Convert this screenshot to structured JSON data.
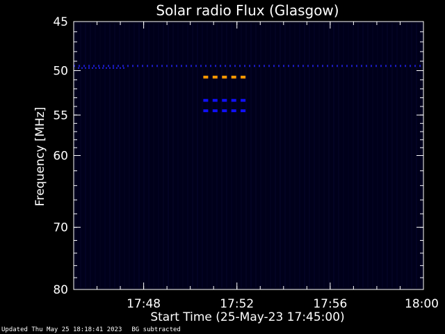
{
  "chart_data": {
    "type": "heatmap",
    "title": "Solar radio Flux (Glasgow)",
    "xlabel": "Start Time (25-May-23 17:45:00)",
    "ylabel": "Frequency [MHz]",
    "x_range_minutes": [
      0,
      15
    ],
    "x_ticks": [
      {
        "minute": 3,
        "label": "17:48"
      },
      {
        "minute": 7,
        "label": "17:52"
      },
      {
        "minute": 11,
        "label": "17:56"
      },
      {
        "minute": 15,
        "label": "18:00"
      }
    ],
    "y_range_mhz": [
      45,
      80
    ],
    "y_scale": "log",
    "y_ticks": [
      45,
      50,
      55,
      60,
      70,
      80
    ],
    "background_color": "#00001a",
    "features": [
      {
        "kind": "continuous-band",
        "frequency_mhz": 49.5,
        "x_minutes": [
          0,
          15
        ],
        "intensity": "blue",
        "color": "#2020e0"
      },
      {
        "kind": "burst",
        "frequency_mhz": 50.7,
        "x_minutes": [
          5.5,
          7.5
        ],
        "intensity": "high",
        "color": "#ff9900"
      },
      {
        "kind": "burst",
        "frequency_mhz": 53.3,
        "x_minutes": [
          5.5,
          7.5
        ],
        "intensity": "medium",
        "color": "#1010ff"
      },
      {
        "kind": "burst",
        "frequency_mhz": 54.5,
        "x_minutes": [
          5.5,
          7.5
        ],
        "intensity": "medium",
        "color": "#1010ff"
      }
    ]
  },
  "footer": {
    "updated": "Updated Thu May 25 18:18:41 2023",
    "note": "BG subtracted"
  },
  "colors": {
    "axes": "#ffffff",
    "text": "#ffffff"
  }
}
